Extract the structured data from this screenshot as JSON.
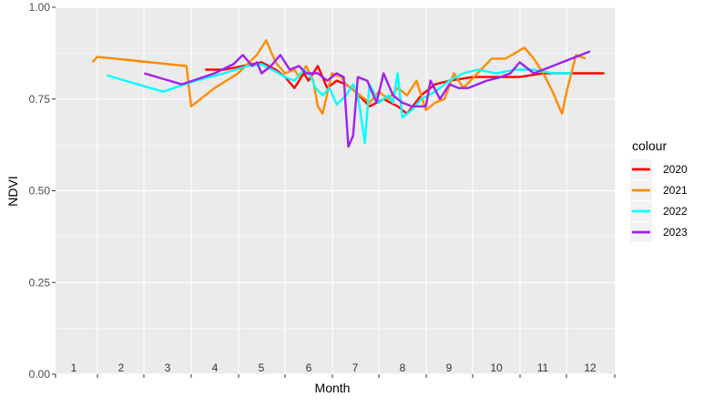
{
  "chart_data": {
    "type": "line",
    "title": "",
    "xlabel": "Month",
    "ylabel": "NDVI",
    "x_tick_labels": [
      "1",
      "2",
      "3",
      "4",
      "5",
      "6",
      "7",
      "8",
      "9",
      "10",
      "11",
      "12"
    ],
    "xlim": [
      0.5,
      12.5
    ],
    "ylim": [
      0,
      1
    ],
    "y_ticks": [
      0,
      0.25,
      0.5,
      0.75,
      1
    ],
    "y_tick_labels": [
      "0.00",
      "0.25",
      "0.50",
      "0.75",
      "1.00"
    ],
    "grid": true,
    "background": "#ebebeb",
    "legend": {
      "title": "colour",
      "placement": "right"
    },
    "series": [
      {
        "name": "2020",
        "color": "#ff0000",
        "x": [
          3.8,
          4.2,
          4.6,
          5.0,
          5.3,
          5.5,
          5.7,
          5.9,
          6.0,
          6.2,
          6.4,
          6.6,
          6.8,
          7.0,
          7.3,
          7.6,
          7.9,
          8.1,
          8.4,
          8.7,
          9.0,
          9.5,
          10.0,
          10.5,
          11.0,
          11.5,
          12.0,
          12.3
        ],
        "y": [
          0.83,
          0.83,
          0.84,
          0.85,
          0.83,
          0.81,
          0.78,
          0.82,
          0.8,
          0.84,
          0.78,
          0.8,
          0.79,
          0.77,
          0.73,
          0.75,
          0.73,
          0.71,
          0.76,
          0.79,
          0.8,
          0.81,
          0.81,
          0.81,
          0.82,
          0.82,
          0.82,
          0.82
        ]
      },
      {
        "name": "2021",
        "color": "#ff8c00",
        "x": [
          1.4,
          1.5,
          3.4,
          3.5,
          4.0,
          4.5,
          4.9,
          5.1,
          5.3,
          5.5,
          5.7,
          5.8,
          5.95,
          6.1,
          6.2,
          6.3,
          6.5,
          6.7,
          6.8,
          7.1,
          7.3,
          7.5,
          7.7,
          7.9,
          8.1,
          8.3,
          8.5,
          8.7,
          8.9,
          9.1,
          9.3,
          9.6,
          9.9,
          10.2,
          10.6,
          10.8,
          11.0,
          11.2,
          11.4,
          11.5,
          11.7,
          11.9
        ],
        "y": [
          0.85,
          0.865,
          0.84,
          0.73,
          0.78,
          0.82,
          0.87,
          0.91,
          0.85,
          0.82,
          0.83,
          0.81,
          0.84,
          0.8,
          0.73,
          0.71,
          0.82,
          0.81,
          0.79,
          0.76,
          0.74,
          0.77,
          0.75,
          0.78,
          0.76,
          0.8,
          0.72,
          0.74,
          0.75,
          0.82,
          0.78,
          0.82,
          0.86,
          0.86,
          0.89,
          0.86,
          0.82,
          0.77,
          0.71,
          0.77,
          0.87,
          0.86
        ]
      },
      {
        "name": "2022",
        "color": "#00ffff",
        "x": [
          1.7,
          2.5,
          2.9,
          3.6,
          4.2,
          4.7,
          5.0,
          5.3,
          5.5,
          5.7,
          5.9,
          6.05,
          6.15,
          6.3,
          6.45,
          6.6,
          6.8,
          6.95,
          7.05,
          7.1,
          7.2,
          7.3,
          7.5,
          7.7,
          7.8,
          7.9,
          8.0,
          8.2,
          8.4,
          8.7,
          9.0,
          9.3,
          9.6,
          10.0,
          10.4,
          10.8,
          11.2,
          11.6
        ],
        "y": [
          0.815,
          0.785,
          0.77,
          0.8,
          0.82,
          0.84,
          0.845,
          0.825,
          0.81,
          0.8,
          0.83,
          0.81,
          0.78,
          0.76,
          0.78,
          0.735,
          0.76,
          0.79,
          0.76,
          0.72,
          0.63,
          0.79,
          0.74,
          0.76,
          0.74,
          0.82,
          0.7,
          0.72,
          0.75,
          0.77,
          0.8,
          0.82,
          0.83,
          0.82,
          0.83,
          0.83,
          0.82,
          0.82
        ]
      },
      {
        "name": "2023",
        "color": "#a020f0",
        "x": [
          2.5,
          3.3,
          4.0,
          4.4,
          4.6,
          4.8,
          4.9,
          5.0,
          5.2,
          5.4,
          5.6,
          5.8,
          5.95,
          6.1,
          6.2,
          6.3,
          6.4,
          6.6,
          6.75,
          6.85,
          6.95,
          7.05,
          7.25,
          7.45,
          7.6,
          7.8,
          8.0,
          8.2,
          8.4,
          8.5,
          8.6,
          8.8,
          9.0,
          9.2,
          9.4,
          9.6,
          9.8,
          10.1,
          10.3,
          10.5,
          10.8,
          11.2,
          11.6,
          12.0
        ],
        "y": [
          0.82,
          0.79,
          0.82,
          0.845,
          0.87,
          0.84,
          0.85,
          0.82,
          0.84,
          0.87,
          0.83,
          0.84,
          0.82,
          0.82,
          0.82,
          0.81,
          0.8,
          0.82,
          0.81,
          0.62,
          0.65,
          0.81,
          0.8,
          0.74,
          0.82,
          0.76,
          0.74,
          0.73,
          0.73,
          0.73,
          0.8,
          0.75,
          0.79,
          0.78,
          0.78,
          0.79,
          0.8,
          0.81,
          0.82,
          0.85,
          0.82,
          0.84,
          0.86,
          0.88
        ]
      }
    ]
  }
}
